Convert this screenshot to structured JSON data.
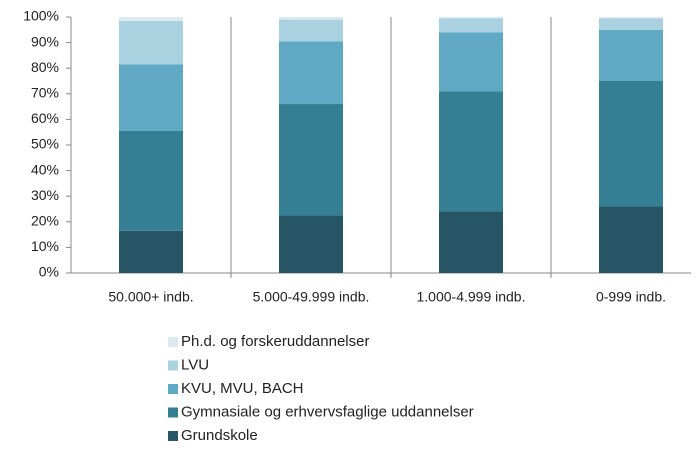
{
  "chart_data": {
    "type": "stacked_bar",
    "categories": [
      "50.000+ indb.",
      "5.000-49.999 indb.",
      "1.000-4.999 indb.",
      "0-999 indb."
    ],
    "series": [
      {
        "name": "Grundskole",
        "color": "#265666",
        "values": [
          16.5,
          22.5,
          24,
          26
        ]
      },
      {
        "name": "Gymnasiale og erhvervsfaglige uddannelser",
        "color": "#357f95",
        "values": [
          39,
          43.5,
          47,
          49
        ]
      },
      {
        "name": "KVU, MVU, BACH",
        "color": "#5fa9c4",
        "values": [
          26,
          24.5,
          23,
          20
        ]
      },
      {
        "name": "LVU",
        "color": "#a9d1df",
        "values": [
          17,
          8.5,
          5.5,
          4.5
        ]
      },
      {
        "name": "Ph.d. og forskeruddannelser",
        "color": "#dbeaf0",
        "values": [
          1.5,
          1,
          0.5,
          0.5
        ]
      }
    ],
    "ylim": [
      0,
      100
    ],
    "yticks": [
      {
        "value": 0,
        "label": "0%"
      },
      {
        "value": 10,
        "label": "10%"
      },
      {
        "value": 20,
        "label": "20%"
      },
      {
        "value": 30,
        "label": "30%"
      },
      {
        "value": 40,
        "label": "40%"
      },
      {
        "value": 50,
        "label": "50%"
      },
      {
        "value": 60,
        "label": "60%"
      },
      {
        "value": 70,
        "label": "70%"
      },
      {
        "value": 80,
        "label": "80%"
      },
      {
        "value": 90,
        "label": "90%"
      },
      {
        "value": 100,
        "label": "100%"
      }
    ],
    "legend": "bottom"
  }
}
